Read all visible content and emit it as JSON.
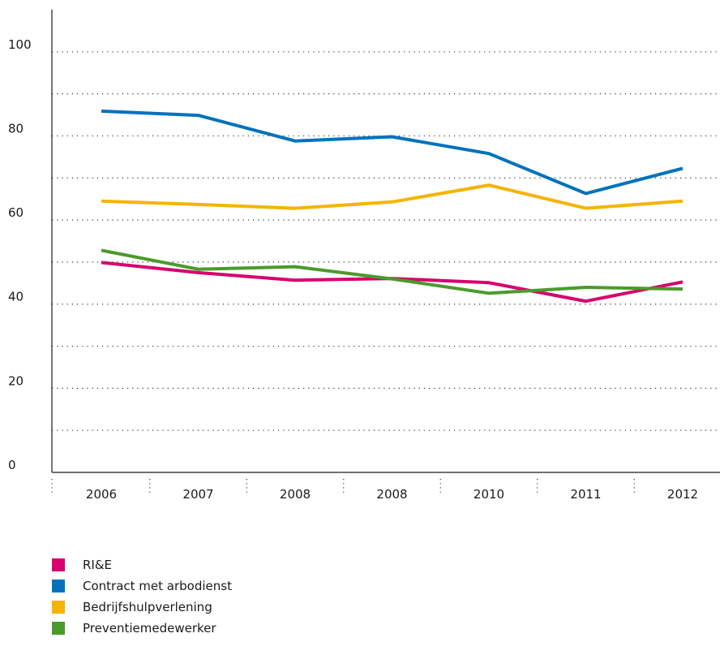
{
  "chart_data": {
    "type": "line",
    "categories": [
      "2006",
      "2007",
      "2008",
      "2008",
      "2010",
      "2011",
      "2012"
    ],
    "ylim": [
      0,
      110
    ],
    "yticks": [
      0,
      20,
      40,
      60,
      80,
      100
    ],
    "grid": true,
    "legend_position": "bottom-left",
    "series": [
      {
        "name": "RI&E",
        "color": "#d6006e",
        "values": [
          49.9,
          47.5,
          45.7,
          46.1,
          45.1,
          40.7,
          45.3
        ]
      },
      {
        "name": "Contract met arbodienst",
        "color": "#0072bb",
        "values": [
          85.9,
          84.9,
          78.8,
          79.8,
          75.8,
          66.3,
          72.3
        ]
      },
      {
        "name": "Bedrijfshulpverlening",
        "color": "#f5b400",
        "values": [
          64.5,
          63.7,
          62.8,
          64.3,
          68.3,
          62.8,
          64.5
        ]
      },
      {
        "name": "Preventiemedewerker",
        "color": "#4b9a2d",
        "values": [
          52.8,
          48.3,
          48.9,
          46.0,
          42.6,
          44.0,
          43.6
        ]
      }
    ]
  }
}
